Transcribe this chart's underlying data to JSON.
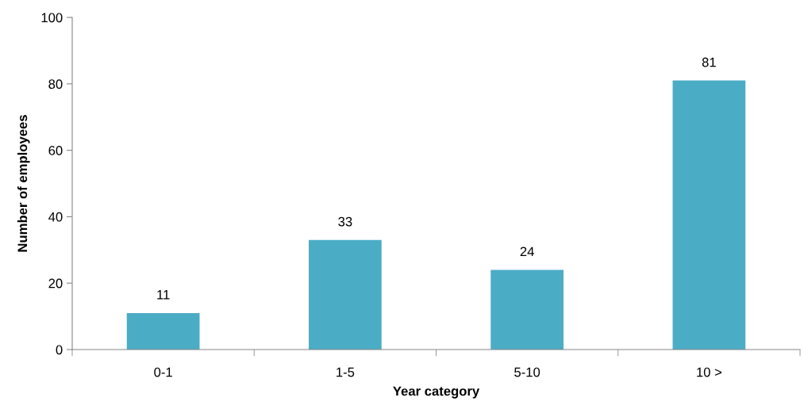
{
  "chart_data": {
    "type": "bar",
    "xlabel": "Year category",
    "ylabel": "Number of employees",
    "categories": [
      "0-1",
      "1-5",
      "5-10",
      "10 >"
    ],
    "values": [
      11,
      33,
      24,
      81
    ],
    "color": "#4bacc6",
    "ylim": [
      0,
      100
    ],
    "yticks": [
      0,
      20,
      40,
      60,
      80,
      100
    ],
    "grid": false,
    "data_labels": true
  }
}
